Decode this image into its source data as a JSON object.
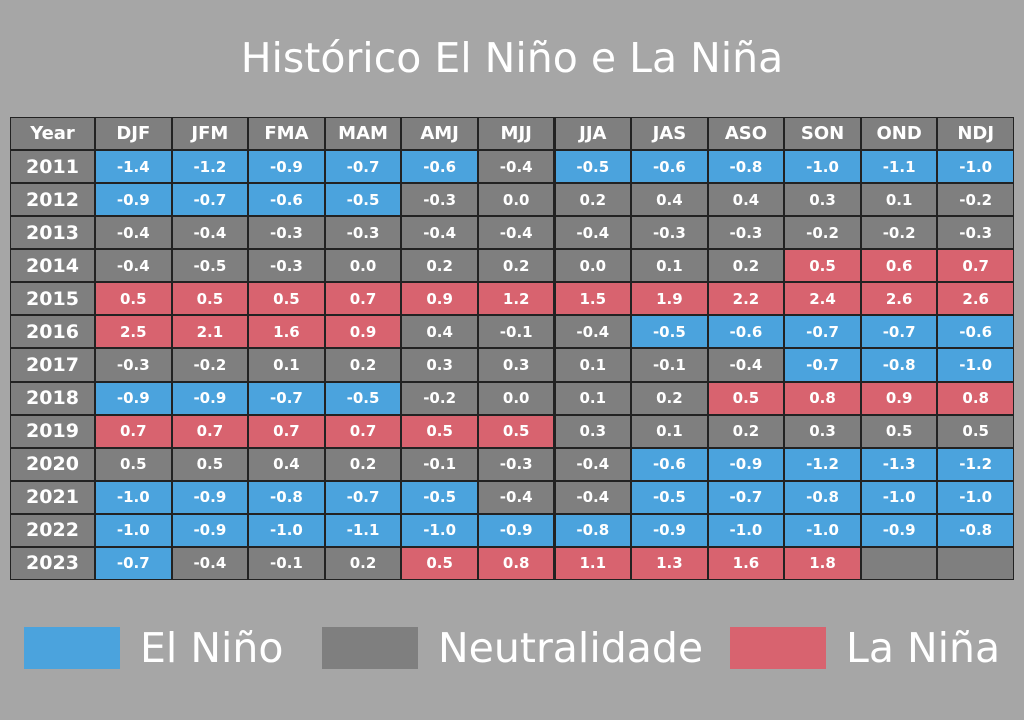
{
  "title": "Histórico El Niño e La Niña",
  "legend": [
    {
      "name": "El Niño",
      "color": "#4ba3dd"
    },
    {
      "name": "Neutralidade",
      "color": "#7f7f7f"
    },
    {
      "name": "La Niña",
      "color": "#d8636f"
    }
  ],
  "table": {
    "header": [
      "Year",
      "DJF",
      "JFM",
      "FMA",
      "MAM",
      "AMJ",
      "MJJ",
      "JJA",
      "JAS",
      "ASO",
      "SON",
      "OND",
      "NDJ"
    ],
    "rows": [
      {
        "year": "2011",
        "values": [
          "-1.4",
          "-1.2",
          "-0.9",
          "-0.7",
          "-0.6",
          "-0.4",
          "-0.5",
          "-0.6",
          "-0.8",
          "-1.0",
          "-1.1",
          "-1.0"
        ],
        "phases": [
          0,
          0,
          0,
          0,
          0,
          1,
          0,
          0,
          0,
          0,
          0,
          0
        ]
      },
      {
        "year": "2012",
        "values": [
          "-0.9",
          "-0.7",
          "-0.6",
          "-0.5",
          "-0.3",
          "0.0",
          "0.2",
          "0.4",
          "0.4",
          "0.3",
          "0.1",
          "-0.2"
        ],
        "phases": [
          0,
          0,
          0,
          0,
          1,
          1,
          1,
          1,
          1,
          1,
          1,
          1
        ]
      },
      {
        "year": "2013",
        "values": [
          "-0.4",
          "-0.4",
          "-0.3",
          "-0.3",
          "-0.4",
          "-0.4",
          "-0.4",
          "-0.3",
          "-0.3",
          "-0.2",
          "-0.2",
          "-0.3"
        ],
        "phases": [
          1,
          1,
          1,
          1,
          1,
          1,
          1,
          1,
          1,
          1,
          1,
          1
        ]
      },
      {
        "year": "2014",
        "values": [
          "-0.4",
          "-0.5",
          "-0.3",
          "0.0",
          "0.2",
          "0.2",
          "0.0",
          "0.1",
          "0.2",
          "0.5",
          "0.6",
          "0.7"
        ],
        "phases": [
          1,
          1,
          1,
          1,
          1,
          1,
          1,
          1,
          1,
          2,
          2,
          2
        ]
      },
      {
        "year": "2015",
        "values": [
          "0.5",
          "0.5",
          "0.5",
          "0.7",
          "0.9",
          "1.2",
          "1.5",
          "1.9",
          "2.2",
          "2.4",
          "2.6",
          "2.6"
        ],
        "phases": [
          2,
          2,
          2,
          2,
          2,
          2,
          2,
          2,
          2,
          2,
          2,
          2
        ]
      },
      {
        "year": "2016",
        "values": [
          "2.5",
          "2.1",
          "1.6",
          "0.9",
          "0.4",
          "-0.1",
          "-0.4",
          "-0.5",
          "-0.6",
          "-0.7",
          "-0.7",
          "-0.6"
        ],
        "phases": [
          2,
          2,
          2,
          2,
          1,
          1,
          1,
          0,
          0,
          0,
          0,
          0
        ]
      },
      {
        "year": "2017",
        "values": [
          "-0.3",
          "-0.2",
          "0.1",
          "0.2",
          "0.3",
          "0.3",
          "0.1",
          "-0.1",
          "-0.4",
          "-0.7",
          "-0.8",
          "-1.0"
        ],
        "phases": [
          1,
          1,
          1,
          1,
          1,
          1,
          1,
          1,
          1,
          0,
          0,
          0
        ]
      },
      {
        "year": "2018",
        "values": [
          "-0.9",
          "-0.9",
          "-0.7",
          "-0.5",
          "-0.2",
          "0.0",
          "0.1",
          "0.2",
          "0.5",
          "0.8",
          "0.9",
          "0.8"
        ],
        "phases": [
          0,
          0,
          0,
          0,
          1,
          1,
          1,
          1,
          2,
          2,
          2,
          2
        ]
      },
      {
        "year": "2019",
        "values": [
          "0.7",
          "0.7",
          "0.7",
          "0.7",
          "0.5",
          "0.5",
          "0.3",
          "0.1",
          "0.2",
          "0.3",
          "0.5",
          "0.5"
        ],
        "phases": [
          2,
          2,
          2,
          2,
          2,
          2,
          1,
          1,
          1,
          1,
          1,
          1
        ]
      },
      {
        "year": "2020",
        "values": [
          "0.5",
          "0.5",
          "0.4",
          "0.2",
          "-0.1",
          "-0.3",
          "-0.4",
          "-0.6",
          "-0.9",
          "-1.2",
          "-1.3",
          "-1.2"
        ],
        "phases": [
          1,
          1,
          1,
          1,
          1,
          1,
          1,
          0,
          0,
          0,
          0,
          0
        ]
      },
      {
        "year": "2021",
        "values": [
          "-1.0",
          "-0.9",
          "-0.8",
          "-0.7",
          "-0.5",
          "-0.4",
          "-0.4",
          "-0.5",
          "-0.7",
          "-0.8",
          "-1.0",
          "-1.0"
        ],
        "phases": [
          0,
          0,
          0,
          0,
          0,
          1,
          1,
          0,
          0,
          0,
          0,
          0
        ]
      },
      {
        "year": "2022",
        "values": [
          "-1.0",
          "-0.9",
          "-1.0",
          "-1.1",
          "-1.0",
          "-0.9",
          "-0.8",
          "-0.9",
          "-1.0",
          "-1.0",
          "-0.9",
          "-0.8"
        ],
        "phases": [
          0,
          0,
          0,
          0,
          0,
          0,
          0,
          0,
          0,
          0,
          0,
          0
        ]
      },
      {
        "year": "2023",
        "values": [
          "-0.7",
          "-0.4",
          "-0.1",
          "0.2",
          "0.5",
          "0.8",
          "1.1",
          "1.3",
          "1.6",
          "1.8",
          null,
          null
        ],
        "phases": [
          0,
          1,
          1,
          1,
          2,
          2,
          2,
          2,
          2,
          2,
          1,
          1
        ]
      }
    ]
  }
}
